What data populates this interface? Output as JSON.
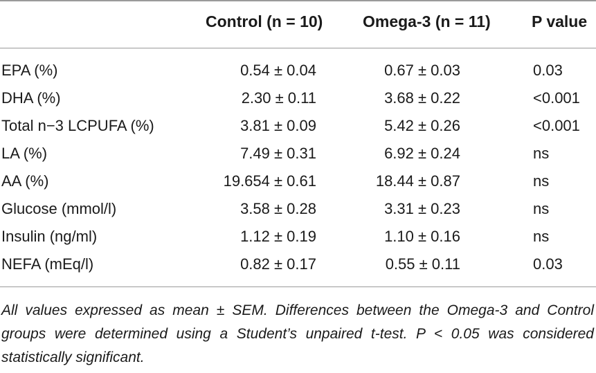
{
  "table": {
    "headers": {
      "control": "Control (n = 10)",
      "omega": "Omega-3 (n = 11)",
      "pvalue": "P value"
    },
    "rows": [
      {
        "label": "EPA (%)",
        "control": "0.54 ± 0.04",
        "omega": "0.67 ± 0.03",
        "p": "0.03"
      },
      {
        "label": "DHA (%)",
        "control": "2.30 ± 0.11",
        "omega": "3.68 ± 0.22",
        "p": "<0.001"
      },
      {
        "label": "Total n−3 LCPUFA (%)",
        "control": "3.81 ± 0.09",
        "omega": "5.42 ± 0.26",
        "p": "<0.001"
      },
      {
        "label": "LA (%)",
        "control": "7.49 ± 0.31",
        "omega": "6.92 ± 0.24",
        "p": "ns"
      },
      {
        "label": "AA (%)",
        "control": "19.654 ± 0.61",
        "omega": "18.44 ± 0.87",
        "p": "ns"
      },
      {
        "label": "Glucose (mmol/l)",
        "control": "3.58 ± 0.28",
        "omega": "3.31 ± 0.23",
        "p": "ns"
      },
      {
        "label": "Insulin (ng/ml)",
        "control": "1.12 ± 0.19",
        "omega": "1.10 ± 0.16",
        "p": "ns"
      },
      {
        "label": "NEFA (mEq/l)",
        "control": "0.82 ± 0.17",
        "omega": "0.55 ± 0.11",
        "p": "0.03"
      }
    ]
  },
  "footnote": "All values expressed as mean ± SEM. Differences between the Omega-3 and Control groups were determined using a Student’s unpaired t-test. P < 0.05 was considered statistically significant."
}
